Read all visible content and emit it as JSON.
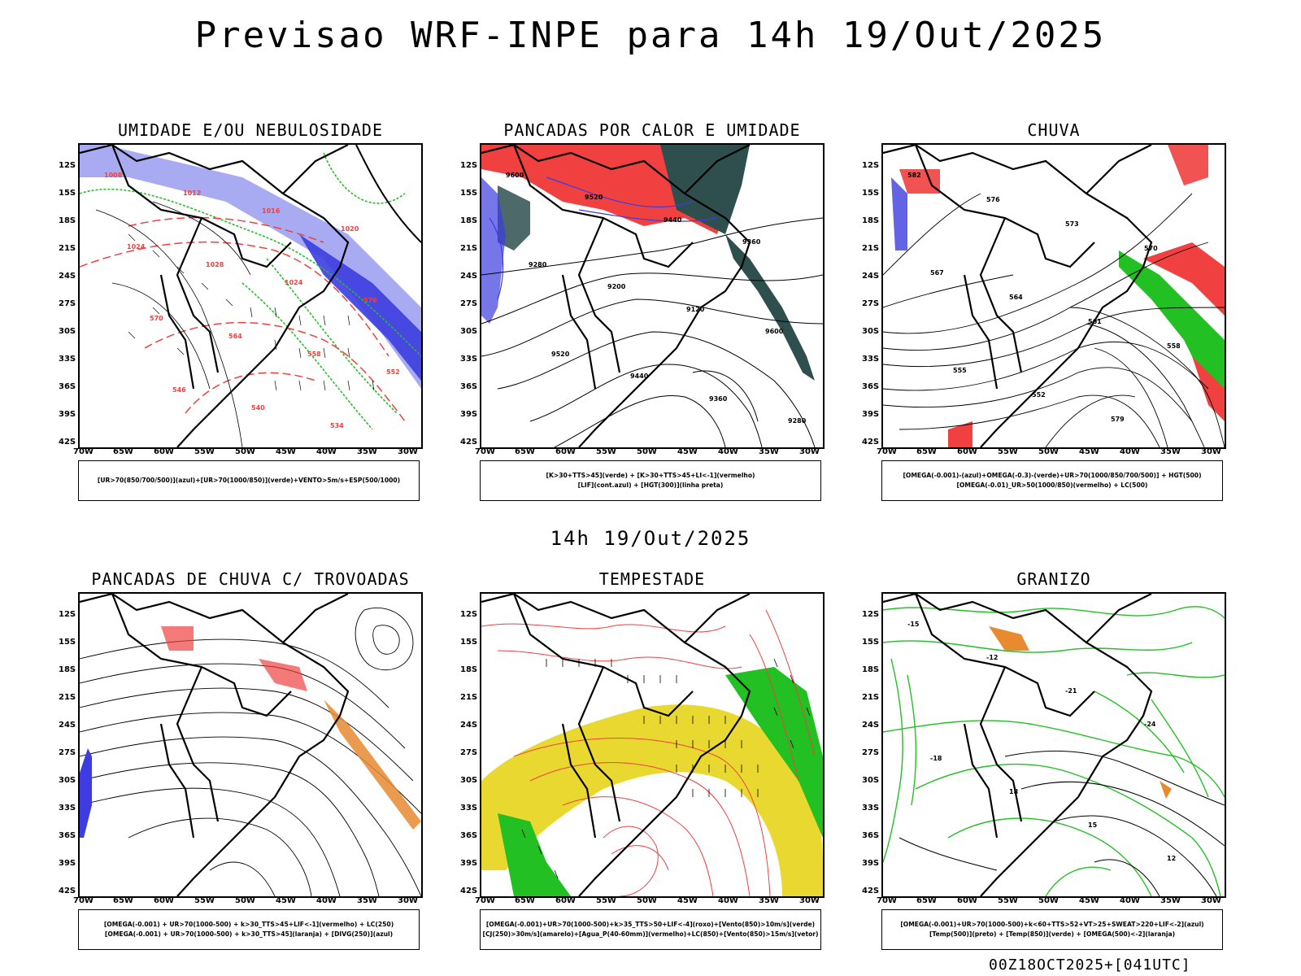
{
  "title": "Previsao WRF-INPE  para 14h 19/Out/2025",
  "mid_time": "14h 19/Out/2025",
  "footer": "00Z18OCT2025+[041UTC]",
  "axes": {
    "lat_labels": [
      "12S",
      "15S",
      "18S",
      "21S",
      "24S",
      "27S",
      "30S",
      "33S",
      "36S",
      "39S",
      "42S"
    ],
    "lon_labels": [
      "70W",
      "65W",
      "60W",
      "55W",
      "50W",
      "45W",
      "40W",
      "35W",
      "30W"
    ]
  },
  "panels": [
    {
      "title": "UMIDADE E/OU NEBULOSIDADE",
      "legend": [
        "[UR>70(850/700/500)](azul)+[UR>70(1000/850)](verde)+VENTO>5m/s+ESP(500/1000)"
      ],
      "map_style": "umidade",
      "contour_labels": [
        "1008",
        "1012",
        "1016",
        "1020",
        "1024",
        "1028",
        "1024",
        "576",
        "570",
        "564",
        "558",
        "552",
        "546",
        "540",
        "534"
      ]
    },
    {
      "title": "PANCADAS POR CALOR E UMIDADE",
      "legend": [
        "[K>30+TTS>45](verde) + [K>30+TTS>45+LI<-1](vermelho)",
        "[LIF](cont.azul) + [HGT(300)](linha preta)"
      ],
      "map_style": "calor",
      "contour_labels": [
        "9600",
        "9520",
        "9440",
        "9360",
        "9280",
        "9200",
        "9120",
        "9600",
        "9520",
        "9440",
        "9360",
        "9280"
      ]
    },
    {
      "title": "CHUVA",
      "legend": [
        "[OMEGA(-0.001)-(azul)+OMEGA(-0.3)-(verde)+UR>70(1000/850/700/500)] + HGT(500)",
        "[OMEGA(-0.01)_UR>50(1000/850)(vermelho) + LC(500)"
      ],
      "map_style": "chuva",
      "contour_labels": [
        "582",
        "576",
        "573",
        "570",
        "567",
        "564",
        "561",
        "558",
        "555",
        "552",
        "579"
      ]
    },
    {
      "title": "PANCADAS DE CHUVA C/ TROVOADAS",
      "legend": [
        "[OMEGA(-0.001) + UR>70(1000-500) + k>30_TTS>45+LIF<-1](vermelho) + LC(250)",
        "[OMEGA(-0.001) + UR>70(1000-500) + k>30_TTS>45](laranja) + [DIVG(250)](azul)"
      ],
      "map_style": "trovoadas",
      "contour_labels": []
    },
    {
      "title": "TEMPESTADE",
      "legend": [
        "[OMEGA(-0.001)+UR>70(1000-500)+k>35_TTS>50+LIF<-4](roxo)+[Vento(850)>10m/s](verde)",
        "[CJ(250)>30m/s](amarelo)+[Agua_P(40-60mm)](vermelho)+LC(850)+[Vento(850)>15m/s](vetor)"
      ],
      "map_style": "tempestade",
      "contour_labels": []
    },
    {
      "title": "GRANIZO",
      "legend": [
        "[OMEGA(-0.001)+UR>70(1000-500)+k<60+TTS>52+VT>25+SWEAT>220+LIF<-2](azul)",
        "[Temp(500)](preto) + [Temp(850)](verde) + [OMEGA(500)<-2](laranja)"
      ],
      "map_style": "granizo",
      "contour_labels": [
        "-15",
        "-12",
        "-21",
        "-24",
        "-18",
        "18",
        "15",
        "12"
      ]
    }
  ],
  "colors": {
    "blue_light": "#9a9cf0",
    "blue_dark": "#3c3ce0",
    "green": "#22c022",
    "red": "#f04040",
    "dark_teal": "#2f4f4f",
    "yellow": "#e8d830",
    "orange": "#e88a30"
  }
}
